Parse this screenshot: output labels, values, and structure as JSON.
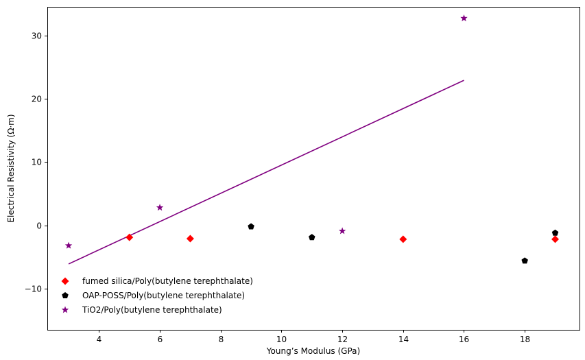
{
  "chart_data": {
    "type": "scatter",
    "xlabel": "Young’s Modulus (GPa)",
    "ylabel": "Electrical Resistivity (Ω·m)",
    "xlim": [
      2.3,
      19.8
    ],
    "ylim": [
      -16.5,
      34.5
    ],
    "xticks": [
      4,
      6,
      8,
      10,
      12,
      14,
      16,
      18
    ],
    "yticks": [
      -10,
      0,
      10,
      20,
      30
    ],
    "grid": false,
    "legend_position": "lower-left",
    "series": [
      {
        "name": "fumed silica/Poly(butylene terephthalate)",
        "marker": "diamond",
        "color": "#ff0000",
        "points": [
          [
            5,
            -1.9
          ],
          [
            7,
            -2.1
          ],
          [
            14,
            -2.2
          ],
          [
            19,
            -2.2
          ]
        ]
      },
      {
        "name": "OAP-POSS/Poly(butylene terephthalate)",
        "marker": "pentagon",
        "color": "#000000",
        "points": [
          [
            9,
            -0.2
          ],
          [
            11,
            -1.9
          ],
          [
            18,
            -5.6
          ],
          [
            19,
            -1.2
          ]
        ]
      },
      {
        "name": "TiO2/Poly(butylene terephthalate)",
        "marker": "star",
        "color": "#800080",
        "points": [
          [
            3,
            -3.2
          ],
          [
            6,
            2.8
          ],
          [
            12,
            -0.9
          ],
          [
            16,
            32.7
          ]
        ]
      }
    ],
    "trendline": {
      "color": "#800080",
      "points": [
        [
          3,
          -6.1
        ],
        [
          16,
          22.9
        ]
      ]
    }
  }
}
